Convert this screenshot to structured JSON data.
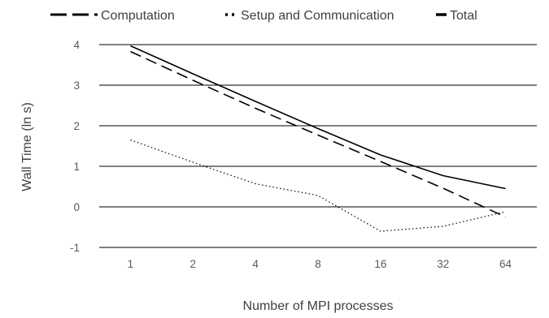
{
  "chart_data": {
    "type": "line",
    "title": "",
    "xlabel": "Number of MPI processes",
    "ylabel": "Wall Time (ln s)",
    "categories": [
      "1",
      "2",
      "4",
      "8",
      "16",
      "32",
      "64"
    ],
    "ylim": [
      -1,
      4
    ],
    "yticks": [
      "-1",
      "0",
      "1",
      "2",
      "3",
      "4"
    ],
    "grid": true,
    "legend_position": "top",
    "series": [
      {
        "name": "Computation",
        "values": [
          3.83,
          3.12,
          2.43,
          1.77,
          1.12,
          0.46,
          -0.25
        ],
        "color": "#000000",
        "dash": "dashed"
      },
      {
        "name": "Setup and Communication",
        "values": [
          1.65,
          1.1,
          0.57,
          0.28,
          -0.6,
          -0.48,
          -0.12
        ],
        "color": "#000000",
        "dash": "dotted"
      },
      {
        "name": "Total",
        "values": [
          3.97,
          3.28,
          2.6,
          1.93,
          1.28,
          0.77,
          0.45
        ],
        "color": "#000000",
        "dash": "solid"
      }
    ]
  }
}
